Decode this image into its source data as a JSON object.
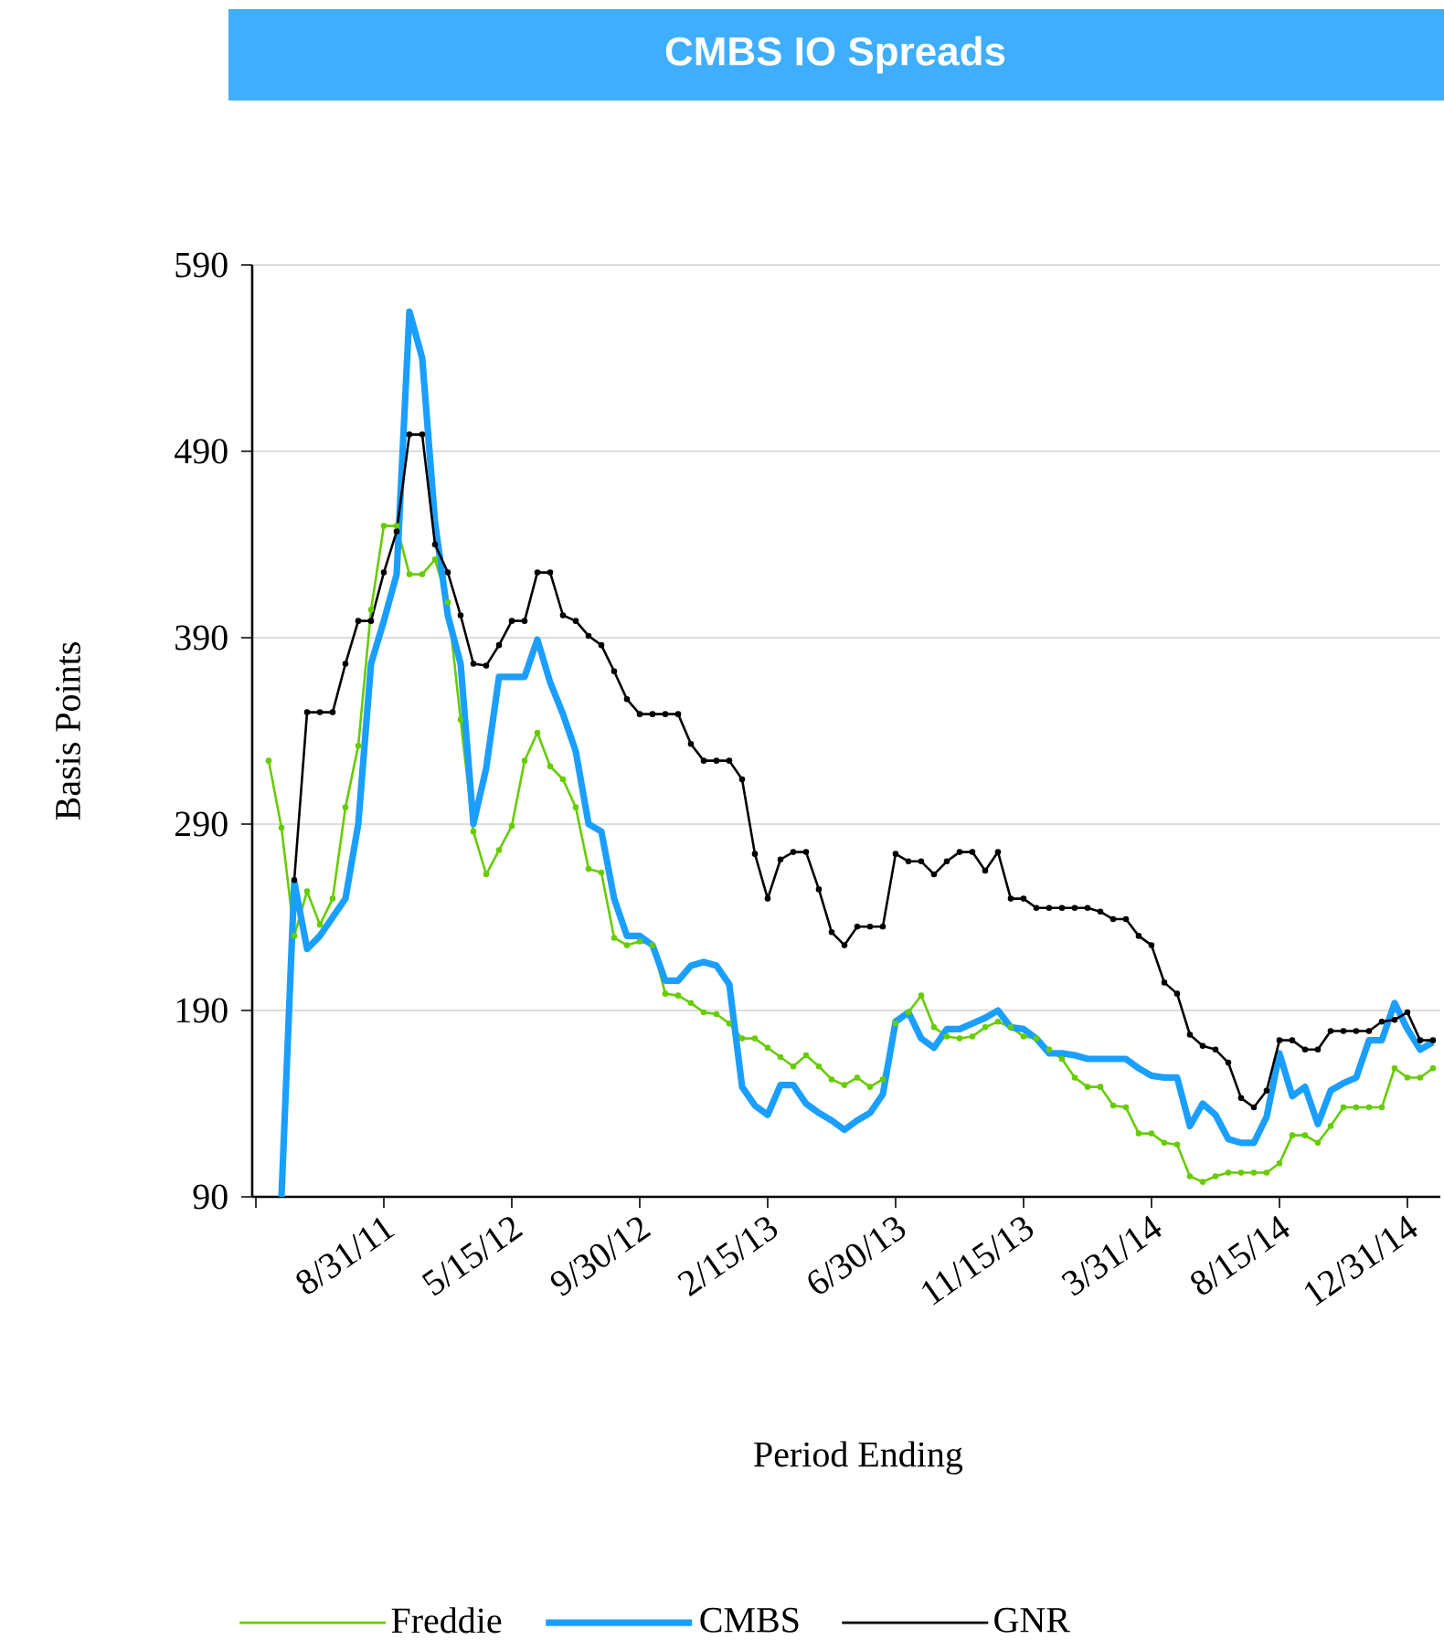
{
  "chart_data": {
    "type": "line",
    "title": "CMBS IO Spreads",
    "xlabel": "Period Ending",
    "ylabel": "Basis Points",
    "categories": [
      null,
      null,
      null,
      null,
      null,
      null,
      null,
      null,
      null,
      null,
      "8/31/11",
      null,
      null,
      null,
      null,
      null,
      null,
      null,
      null,
      null,
      "5/15/12",
      null,
      null,
      null,
      null,
      null,
      null,
      null,
      null,
      null,
      "9/30/12",
      null,
      null,
      null,
      null,
      null,
      null,
      null,
      null,
      null,
      "2/15/13",
      null,
      null,
      null,
      null,
      null,
      null,
      null,
      null,
      null,
      "6/30/13",
      null,
      null,
      null,
      null,
      null,
      null,
      null,
      null,
      null,
      "11/15/13",
      null,
      null,
      null,
      null,
      null,
      null,
      null,
      null,
      null,
      "3/31/14",
      null,
      null,
      null,
      null,
      null,
      null,
      null,
      null,
      null,
      "8/15/14",
      null,
      null,
      null,
      null,
      null,
      null,
      null,
      null,
      null,
      "12/31/14",
      null,
      null
    ],
    "series": [
      {
        "name": "Freddie",
        "color": "#66cc00",
        "marker": "circle",
        "values": [
          null,
          324,
          288,
          230,
          254,
          236,
          250,
          299,
          332,
          405,
          450,
          450,
          424,
          424,
          432,
          409,
          346,
          286,
          263,
          276,
          289,
          324,
          339,
          321,
          314,
          299,
          266,
          264,
          229,
          225,
          227,
          225,
          199,
          198,
          194,
          189,
          188,
          183,
          175,
          175,
          170,
          165,
          160,
          166,
          160,
          153,
          150,
          154,
          149,
          153,
          183,
          189,
          198,
          181,
          176,
          175,
          176,
          181,
          184,
          181,
          176,
          175,
          169,
          164,
          154,
          149,
          149,
          139,
          138,
          124,
          124,
          119,
          118,
          101,
          98,
          101,
          103,
          103,
          103,
          103,
          108,
          123,
          123,
          119,
          128,
          138,
          138,
          138,
          138,
          159,
          154,
          154,
          159
        ]
      },
      {
        "name": "CMBS",
        "color": "#1a9fff",
        "marker": "none",
        "values": [
          null,
          null,
          90,
          259,
          223,
          230,
          240,
          250,
          290,
          376,
          399,
          424,
          565,
          540,
          452,
          402,
          376,
          290,
          320,
          369,
          369,
          369,
          389,
          366,
          349,
          329,
          290,
          286,
          250,
          230,
          230,
          225,
          206,
          206,
          214,
          216,
          214,
          204,
          149,
          139,
          134,
          150,
          150,
          140,
          135,
          131,
          126,
          131,
          135,
          145,
          184,
          189,
          175,
          170,
          180,
          180,
          183,
          186,
          190,
          181,
          180,
          175,
          167,
          167,
          166,
          164,
          164,
          164,
          164,
          159,
          155,
          154,
          154,
          128,
          140,
          134,
          121,
          119,
          119,
          133,
          167,
          144,
          149,
          129,
          147,
          151,
          154,
          174,
          174,
          194,
          180,
          169,
          173
        ]
      },
      {
        "name": "GNR",
        "color": "#000000",
        "marker": "circle",
        "values": [
          null,
          null,
          null,
          260,
          350,
          350,
          350,
          376,
          399,
          399,
          425,
          447,
          499,
          499,
          440,
          425,
          402,
          376,
          375,
          386,
          399,
          399,
          425,
          425,
          402,
          399,
          391,
          386,
          372,
          357,
          349,
          349,
          349,
          349,
          333,
          324,
          324,
          324,
          314,
          274,
          250,
          271,
          275,
          275,
          255,
          232,
          225,
          235,
          235,
          235,
          274,
          270,
          270,
          263,
          270,
          275,
          275,
          265,
          275,
          250,
          250,
          245,
          245,
          245,
          245,
          245,
          243,
          239,
          239,
          230,
          225,
          205,
          199,
          177,
          171,
          169,
          162,
          143,
          138,
          147,
          174,
          174,
          169,
          169,
          179,
          179,
          179,
          179,
          184,
          185,
          189,
          174,
          174
        ]
      }
    ],
    "ylim": [
      90,
      590
    ],
    "yticks": [
      90,
      190,
      290,
      390,
      490,
      590
    ],
    "grid": "y",
    "legend": "bottom",
    "line_style": "solid"
  }
}
